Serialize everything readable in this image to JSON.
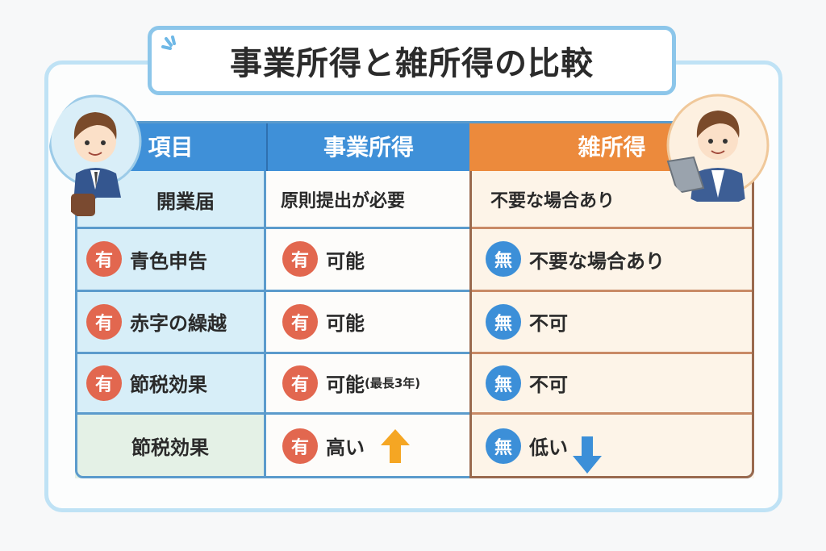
{
  "title": "事業所得と雑所得の比較",
  "colors": {
    "header_blue": "#3f90d8",
    "header_orange": "#ec8a3c",
    "yes_badge": "#e2674f",
    "no_badge": "#3c8fd8",
    "arrow_up": "#f5a623",
    "arrow_down": "#3c8fd8"
  },
  "headers": [
    "項目",
    "事業所得",
    "雑所得"
  ],
  "rows": [
    {
      "item": {
        "badge": "",
        "label": "開業届"
      },
      "business": {
        "badge": "",
        "text": "原則提出が必要",
        "note": ""
      },
      "misc": {
        "badge": "",
        "text": "不要な場合あり"
      }
    },
    {
      "item": {
        "badge": "有",
        "label": "青色申告"
      },
      "business": {
        "badge": "有",
        "text": "可能",
        "note": ""
      },
      "misc": {
        "badge": "無",
        "text": "不要な場合あり"
      }
    },
    {
      "item": {
        "badge": "有",
        "label": "赤字の繰越"
      },
      "business": {
        "badge": "有",
        "text": "可能",
        "note": ""
      },
      "misc": {
        "badge": "無",
        "text": "不可"
      }
    },
    {
      "item": {
        "badge": "有",
        "label": "節税効果"
      },
      "business": {
        "badge": "有",
        "text": "可能",
        "note": "(最長3年)"
      },
      "misc": {
        "badge": "無",
        "text": "不可"
      }
    },
    {
      "item": {
        "badge": "",
        "label": "節税効果"
      },
      "business": {
        "badge": "有",
        "text": "高い",
        "arrow": "arrow-up-icon"
      },
      "misc": {
        "badge": "無",
        "text": "低い",
        "arrow": "arrow-down-icon"
      }
    }
  ],
  "illustrations": [
    "businessman-avatar",
    "laptop-user-avatar"
  ]
}
